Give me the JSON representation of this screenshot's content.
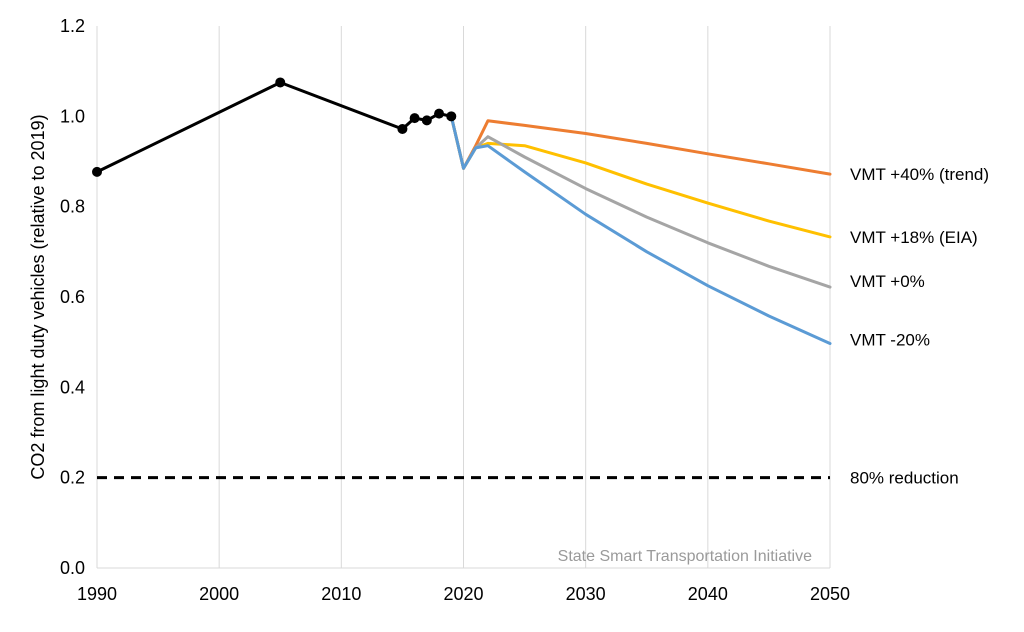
{
  "chart_data": {
    "type": "line",
    "title": "",
    "xlabel": "",
    "ylabel": "CO2 from light duty vehicles (relative to 2019)",
    "xlim": [
      1990,
      2050
    ],
    "ylim": [
      0,
      1.2
    ],
    "x_ticks": [
      "1990",
      "2000",
      "2010",
      "2020",
      "2030",
      "2040",
      "2050"
    ],
    "y_ticks": [
      "0.0",
      "0.2",
      "0.4",
      "0.6",
      "0.8",
      "1.0",
      "1.2"
    ],
    "grid": "vertical",
    "historical": {
      "color": "#000000",
      "points": [
        {
          "x": 1990,
          "y": 0.877
        },
        {
          "x": 2005,
          "y": 1.075
        },
        {
          "x": 2015,
          "y": 0.972
        },
        {
          "x": 2016,
          "y": 0.996
        },
        {
          "x": 2017,
          "y": 0.991
        },
        {
          "x": 2018,
          "y": 1.006
        },
        {
          "x": 2019,
          "y": 1.0
        }
      ]
    },
    "series": [
      {
        "name": "VMT +40% (trend)",
        "color": "#ED7D31",
        "x": [
          2019,
          2020,
          2021,
          2022,
          2025,
          2030,
          2035,
          2040,
          2045,
          2050
        ],
        "values": [
          1.0,
          0.885,
          0.935,
          0.99,
          0.98,
          0.962,
          0.94,
          0.917,
          0.895,
          0.872
        ]
      },
      {
        "name": "VMT +18% (EIA)",
        "color": "#FFC000",
        "x": [
          2019,
          2020,
          2021,
          2022,
          2025,
          2030,
          2035,
          2040,
          2045,
          2050
        ],
        "values": [
          1.0,
          0.885,
          0.93,
          0.94,
          0.935,
          0.897,
          0.85,
          0.808,
          0.768,
          0.733
        ]
      },
      {
        "name": "VMT +0%",
        "color": "#A5A5A5",
        "x": [
          2019,
          2020,
          2021,
          2022,
          2025,
          2030,
          2035,
          2040,
          2045,
          2050
        ],
        "values": [
          1.0,
          0.885,
          0.93,
          0.955,
          0.91,
          0.84,
          0.777,
          0.72,
          0.668,
          0.622
        ]
      },
      {
        "name": "VMT -20%",
        "color": "#5B9BD5",
        "x": [
          2019,
          2020,
          2021,
          2022,
          2025,
          2030,
          2035,
          2040,
          2045,
          2050
        ],
        "values": [
          1.0,
          0.885,
          0.93,
          0.935,
          0.877,
          0.783,
          0.7,
          0.625,
          0.558,
          0.497
        ]
      }
    ],
    "reference_line": {
      "name": "80% reduction",
      "y": 0.2,
      "color": "#000000",
      "style": "dashed"
    },
    "watermark": "State Smart Transportation Initiative"
  }
}
